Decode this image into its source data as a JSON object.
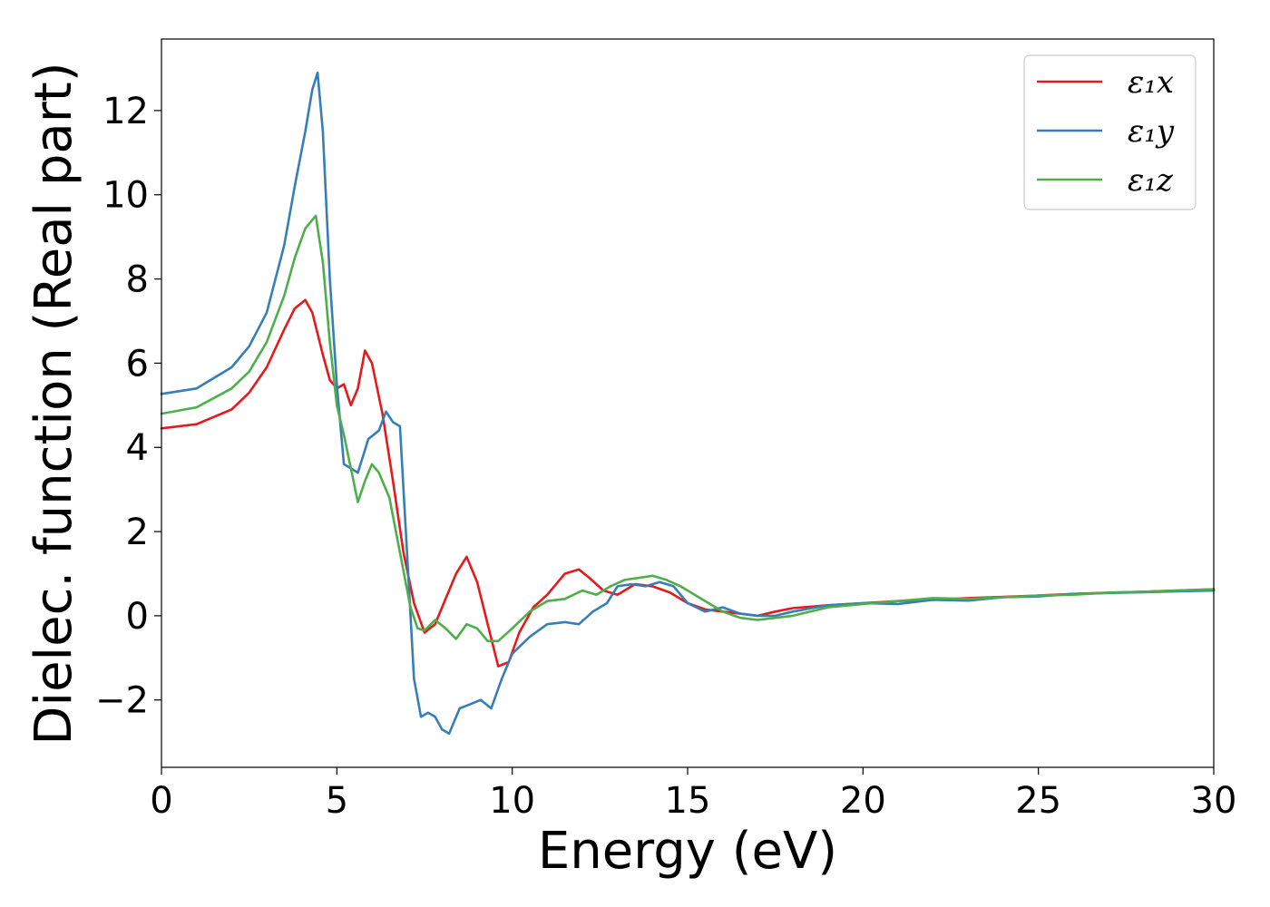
{
  "chart_data": {
    "type": "line",
    "xlabel": "Energy (eV)",
    "ylabel": "Dielec. function (Real part)",
    "xlim": [
      0,
      30
    ],
    "ylim": [
      -3.6,
      13.7
    ],
    "xticks": [
      0,
      5,
      10,
      15,
      20,
      25,
      30
    ],
    "xtick_labels": [
      "0",
      "5",
      "10",
      "15",
      "20",
      "25",
      "30"
    ],
    "yticks": [
      -2,
      0,
      2,
      4,
      6,
      8,
      10,
      12
    ],
    "ytick_labels": [
      "−2",
      "0",
      "2",
      "4",
      "6",
      "8",
      "10",
      "12"
    ],
    "grid": false,
    "legend_position": "top-right",
    "series": [
      {
        "name": "ε₁x",
        "color": "#e41a1c",
        "x": [
          0,
          1,
          2,
          2.5,
          3,
          3.5,
          3.8,
          4.1,
          4.3,
          4.6,
          4.8,
          5.0,
          5.2,
          5.4,
          5.6,
          5.8,
          6.0,
          6.3,
          6.6,
          6.9,
          7.2,
          7.5,
          7.8,
          8.1,
          8.4,
          8.7,
          9.0,
          9.3,
          9.6,
          9.9,
          10.2,
          10.6,
          11.0,
          11.5,
          11.9,
          12.2,
          12.6,
          13.0,
          13.5,
          14.0,
          14.5,
          15.0,
          15.5,
          16.0,
          16.5,
          17.0,
          17.5,
          18.0,
          19.0,
          20.0,
          21.0,
          22.0,
          23.0,
          24.0,
          25.0,
          26.0,
          27.0,
          28.0,
          29.0,
          30.0
        ],
        "y": [
          4.45,
          4.55,
          4.9,
          5.3,
          5.9,
          6.8,
          7.3,
          7.5,
          7.2,
          6.2,
          5.6,
          5.4,
          5.5,
          5.0,
          5.4,
          6.3,
          6.0,
          4.8,
          3.2,
          1.5,
          0.3,
          -0.4,
          -0.2,
          0.4,
          1.0,
          1.4,
          0.8,
          -0.2,
          -1.2,
          -1.1,
          -0.4,
          0.2,
          0.5,
          1.0,
          1.1,
          0.9,
          0.6,
          0.5,
          0.75,
          0.7,
          0.55,
          0.3,
          0.15,
          0.1,
          0.05,
          0.0,
          0.1,
          0.18,
          0.25,
          0.3,
          0.35,
          0.38,
          0.42,
          0.45,
          0.48,
          0.52,
          0.55,
          0.57,
          0.6,
          0.63
        ]
      },
      {
        "name": "ε₁y",
        "color": "#377eb8",
        "x": [
          0,
          1,
          2,
          2.5,
          3,
          3.5,
          3.8,
          4.1,
          4.3,
          4.45,
          4.6,
          4.8,
          5.0,
          5.2,
          5.4,
          5.6,
          5.9,
          6.2,
          6.4,
          6.6,
          6.8,
          7.0,
          7.2,
          7.4,
          7.6,
          7.8,
          8.0,
          8.2,
          8.5,
          8.8,
          9.1,
          9.4,
          9.7,
          10.0,
          10.5,
          11.0,
          11.5,
          11.9,
          12.3,
          12.7,
          13.0,
          13.4,
          13.8,
          14.2,
          14.6,
          15.0,
          15.5,
          16.0,
          16.5,
          17.0,
          17.5,
          18.0,
          19.0,
          20.0,
          21.0,
          22.0,
          23.0,
          24.0,
          25.0,
          26.0,
          27.0,
          28.0,
          29.0,
          30.0
        ],
        "y": [
          5.27,
          5.4,
          5.9,
          6.4,
          7.2,
          8.8,
          10.2,
          11.5,
          12.5,
          12.9,
          11.5,
          8.0,
          5.5,
          3.6,
          3.5,
          3.4,
          4.2,
          4.4,
          4.85,
          4.6,
          4.5,
          1.5,
          -1.5,
          -2.4,
          -2.3,
          -2.4,
          -2.7,
          -2.8,
          -2.2,
          -2.1,
          -2.0,
          -2.2,
          -1.5,
          -0.9,
          -0.5,
          -0.2,
          -0.15,
          -0.2,
          0.1,
          0.3,
          0.7,
          0.75,
          0.7,
          0.8,
          0.7,
          0.3,
          0.1,
          0.2,
          0.05,
          0.0,
          0.0,
          0.1,
          0.25,
          0.3,
          0.28,
          0.38,
          0.36,
          0.44,
          0.46,
          0.52,
          0.54,
          0.56,
          0.58,
          0.6
        ]
      },
      {
        "name": "ε₁z",
        "color": "#4daf4a",
        "x": [
          0,
          1,
          2,
          2.5,
          3,
          3.5,
          3.8,
          4.1,
          4.4,
          4.6,
          4.8,
          5.0,
          5.2,
          5.4,
          5.6,
          5.8,
          6.0,
          6.2,
          6.5,
          6.8,
          7.1,
          7.3,
          7.5,
          7.8,
          8.1,
          8.4,
          8.7,
          9.0,
          9.3,
          9.6,
          10.0,
          10.5,
          11.0,
          11.5,
          12.0,
          12.4,
          12.8,
          13.2,
          13.6,
          14.0,
          14.4,
          14.8,
          15.2,
          15.6,
          16.0,
          16.5,
          17.0,
          17.5,
          18.0,
          19.0,
          20.0,
          21.0,
          22.0,
          23.0,
          24.0,
          25.0,
          26.0,
          27.0,
          28.0,
          29.0,
          30.0
        ],
        "y": [
          4.8,
          4.95,
          5.4,
          5.8,
          6.5,
          7.6,
          8.5,
          9.2,
          9.5,
          8.4,
          6.5,
          5.0,
          4.3,
          3.5,
          2.7,
          3.2,
          3.6,
          3.4,
          2.8,
          1.5,
          0.2,
          -0.3,
          -0.35,
          -0.1,
          -0.3,
          -0.55,
          -0.2,
          -0.3,
          -0.6,
          -0.6,
          -0.3,
          0.1,
          0.35,
          0.4,
          0.6,
          0.5,
          0.7,
          0.85,
          0.9,
          0.95,
          0.85,
          0.7,
          0.5,
          0.3,
          0.1,
          -0.05,
          -0.1,
          -0.05,
          0.0,
          0.2,
          0.28,
          0.35,
          0.42,
          0.4,
          0.44,
          0.48,
          0.5,
          0.55,
          0.57,
          0.6,
          0.63
        ]
      }
    ]
  }
}
